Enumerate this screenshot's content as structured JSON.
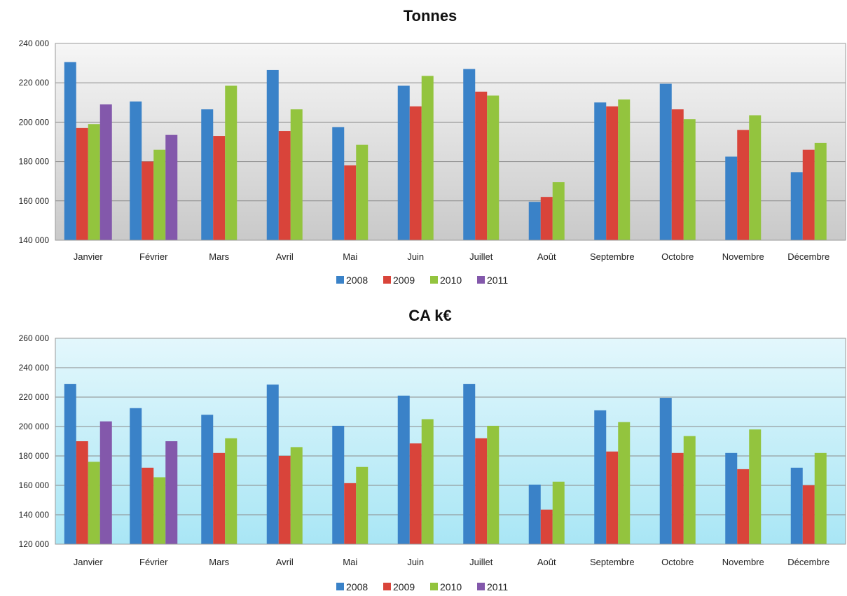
{
  "colors": {
    "2008": "#3a82c8",
    "2009": "#d9443a",
    "2010": "#93c43e",
    "2011": "#8358ab"
  },
  "chart_data": [
    {
      "type": "bar",
      "title": "Tonnes",
      "categories": [
        "Janvier",
        "Février",
        "Mars",
        "Avril",
        "Mai",
        "Juin",
        "Juillet",
        "Août",
        "Septembre",
        "Octobre",
        "Novembre",
        "Décembre"
      ],
      "ylim": [
        140000,
        240000
      ],
      "yticks": [
        140000,
        160000,
        180000,
        200000,
        220000,
        240000
      ],
      "ytick_labels": [
        "140 000",
        "160 000",
        "180 000",
        "200 000",
        "220 000",
        "240 000"
      ],
      "grid": true,
      "legend_position": "bottom",
      "series": [
        {
          "name": "2008",
          "values": [
            230500,
            210500,
            206500,
            226500,
            197500,
            218500,
            227000,
            159500,
            210000,
            219500,
            182500,
            174500
          ]
        },
        {
          "name": "2009",
          "values": [
            197000,
            180000,
            193000,
            195500,
            178000,
            208000,
            215500,
            162000,
            208000,
            206500,
            196000,
            186000
          ]
        },
        {
          "name": "2010",
          "values": [
            199000,
            186000,
            218500,
            206500,
            188500,
            223500,
            213500,
            169500,
            211500,
            201500,
            203500,
            189500
          ]
        },
        {
          "name": "2011",
          "values": [
            209000,
            193500,
            null,
            null,
            null,
            null,
            null,
            null,
            null,
            null,
            null,
            null
          ]
        }
      ]
    },
    {
      "type": "bar",
      "title": "CA k€",
      "categories": [
        "Janvier",
        "Février",
        "Mars",
        "Avril",
        "Mai",
        "Juin",
        "Juillet",
        "Août",
        "Septembre",
        "Octobre",
        "Novembre",
        "Décembre"
      ],
      "ylim": [
        120000,
        260000
      ],
      "yticks": [
        120000,
        140000,
        160000,
        180000,
        200000,
        220000,
        240000,
        260000
      ],
      "ytick_labels": [
        "120 000",
        "140 000",
        "160 000",
        "180 000",
        "200 000",
        "220 000",
        "240 000",
        "260 000"
      ],
      "grid": true,
      "legend_position": "bottom",
      "series": [
        {
          "name": "2008",
          "values": [
            229000,
            212500,
            208000,
            228500,
            200500,
            221000,
            229000,
            160500,
            211000,
            219500,
            182000,
            172000
          ]
        },
        {
          "name": "2009",
          "values": [
            190000,
            172000,
            182000,
            180000,
            161500,
            188500,
            192000,
            143500,
            183000,
            182000,
            171000,
            160000
          ]
        },
        {
          "name": "2010",
          "values": [
            176000,
            165500,
            192000,
            186000,
            172500,
            205000,
            200500,
            162500,
            203000,
            193500,
            198000,
            182000
          ]
        },
        {
          "name": "2011",
          "values": [
            203500,
            190000,
            null,
            null,
            null,
            null,
            null,
            null,
            null,
            null,
            null,
            null
          ]
        }
      ]
    }
  ]
}
